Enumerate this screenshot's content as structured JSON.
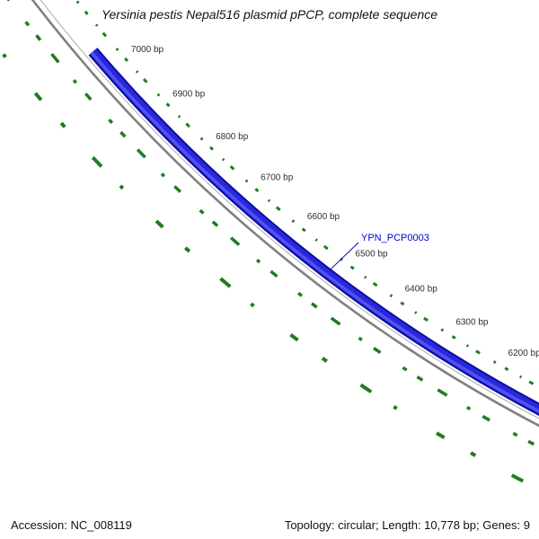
{
  "title": "Yersinia pestis Nepal516 plasmid pPCP, complete sequence",
  "map": {
    "gene_label": "YPN_PCP0003",
    "ruler_ticks": [
      {
        "bp": 7000,
        "label": "7000 bp"
      },
      {
        "bp": 6900,
        "label": "6900 bp"
      },
      {
        "bp": 6800,
        "label": "6800 bp"
      },
      {
        "bp": 6700,
        "label": "6700 bp"
      },
      {
        "bp": 6600,
        "label": "6600 bp"
      },
      {
        "bp": 6500,
        "label": "6500 bp"
      },
      {
        "bp": 6400,
        "label": "6400 bp"
      },
      {
        "bp": 6300,
        "label": "6300 bp"
      },
      {
        "bp": 6200,
        "label": "6200 bp"
      }
    ],
    "colors": {
      "gene_fill": "#2828dc",
      "gene_dark": "#0d0da0",
      "gene_highlight": "#5252f0",
      "backbone": "#808080",
      "backbone_light": "#ababab",
      "track_green": "#1f7d1f",
      "gene_label_blue": "#0000cc",
      "tick_text": "#2f2f2f"
    }
  },
  "status_bar": {
    "accession": "Accession: NC_008119",
    "summary": "Topology: circular; Length: 10,778 bp; Genes: 9"
  }
}
